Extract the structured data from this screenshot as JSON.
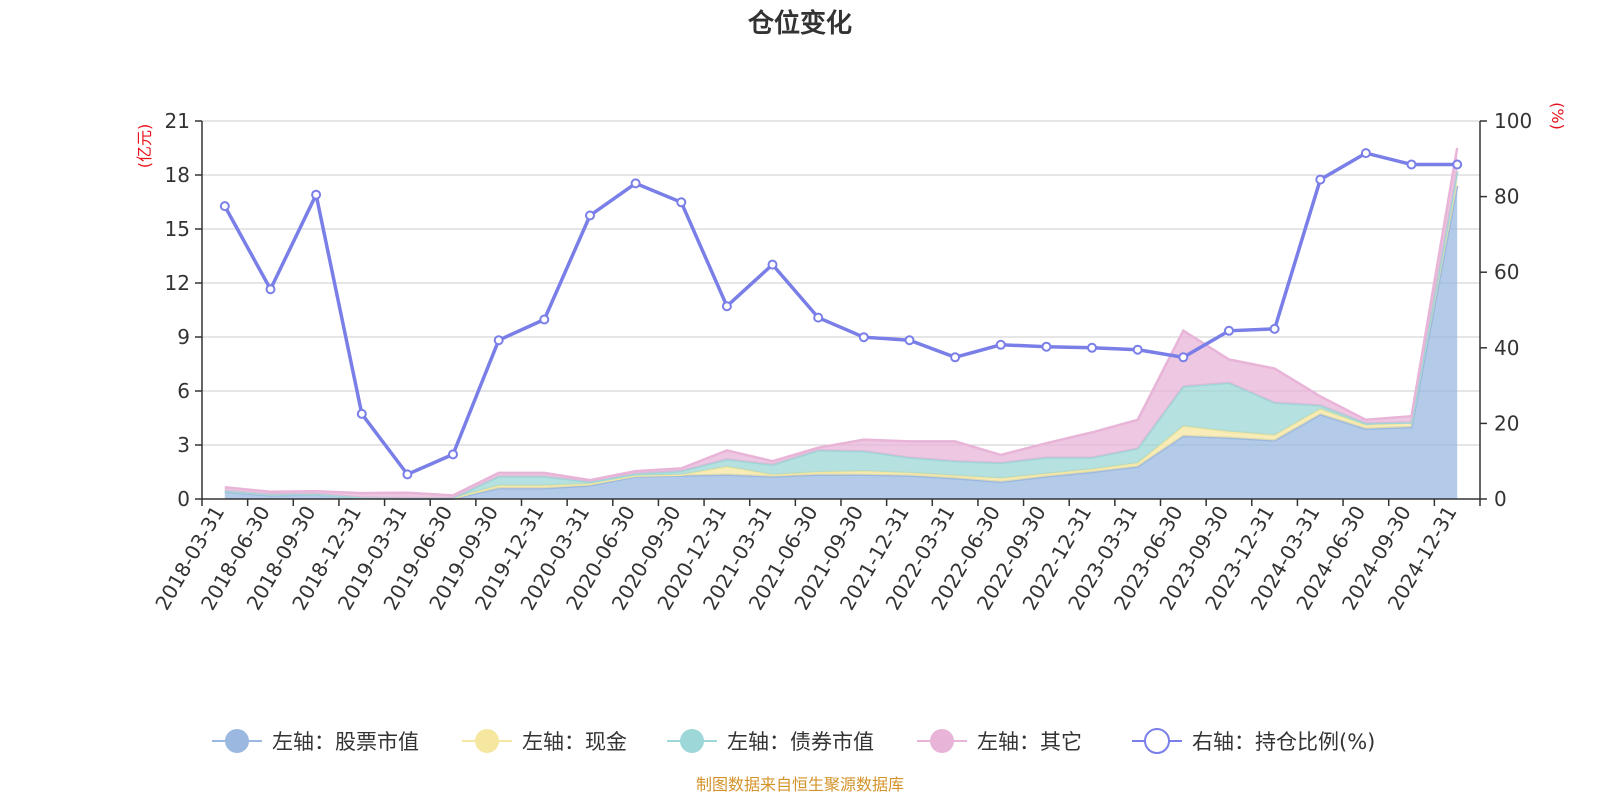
{
  "chart_data": {
    "type": "area",
    "title": "仓位变化",
    "left_axis_unit": "(亿元)",
    "right_axis_unit": "(%)",
    "left_ylim": [
      0,
      21
    ],
    "left_ticks": [
      "0",
      "3",
      "6",
      "9",
      "12",
      "15",
      "18",
      "21"
    ],
    "right_ylim": [
      0,
      100
    ],
    "right_ticks": [
      "0",
      "20",
      "40",
      "60",
      "80",
      "100"
    ],
    "categories": [
      "2018-03-31",
      "2018-06-30",
      "2018-09-30",
      "2018-12-31",
      "2019-03-31",
      "2019-06-30",
      "2019-09-30",
      "2019-12-31",
      "2020-03-31",
      "2020-06-30",
      "2020-09-30",
      "2020-12-31",
      "2021-03-31",
      "2021-06-30",
      "2021-09-30",
      "2021-12-31",
      "2022-03-31",
      "2022-06-30",
      "2022-09-30",
      "2022-12-31",
      "2023-03-31",
      "2023-06-30",
      "2023-09-30",
      "2023-12-31",
      "2024-03-31",
      "2024-06-30",
      "2024-09-30",
      "2024-12-31"
    ],
    "series": [
      {
        "name": "左轴：股票市值",
        "axis": "left",
        "type": "stacked-area",
        "color": "#9ab8e0",
        "values": [
          0.4,
          0.2,
          0.25,
          0.05,
          0.02,
          0.02,
          0.6,
          0.6,
          0.75,
          1.25,
          1.3,
          1.35,
          1.25,
          1.35,
          1.35,
          1.3,
          1.15,
          0.95,
          1.25,
          1.5,
          1.8,
          3.5,
          3.4,
          3.25,
          4.7,
          3.9,
          4.0,
          17.4
        ]
      },
      {
        "name": "左轴：现金",
        "axis": "left",
        "type": "stacked-area",
        "color": "#f5e6a0",
        "values": [
          0.05,
          0.05,
          0.03,
          0.03,
          0.03,
          0.03,
          0.15,
          0.15,
          0.1,
          0.05,
          0.05,
          0.45,
          0.1,
          0.15,
          0.2,
          0.15,
          0.15,
          0.2,
          0.15,
          0.15,
          0.2,
          0.55,
          0.35,
          0.3,
          0.3,
          0.2,
          0.25,
          0.8
        ]
      },
      {
        "name": "左轴：债券市值",
        "axis": "left",
        "type": "stacked-area",
        "color": "#9dd7d7",
        "values": [
          0.0,
          0.0,
          0.0,
          0.0,
          0.0,
          0.0,
          0.5,
          0.5,
          0.1,
          0.1,
          0.2,
          0.4,
          0.55,
          1.2,
          1.1,
          0.85,
          0.8,
          0.85,
          0.9,
          0.65,
          0.8,
          2.2,
          2.7,
          1.8,
          0.2,
          0.1,
          0.0,
          0.0
        ]
      },
      {
        "name": "左轴：其它",
        "axis": "left",
        "type": "stacked-area",
        "color": "#e8b4d8",
        "values": [
          0.2,
          0.15,
          0.15,
          0.25,
          0.3,
          0.15,
          0.2,
          0.2,
          0.1,
          0.15,
          0.15,
          0.5,
          0.2,
          0.15,
          0.65,
          0.9,
          1.1,
          0.45,
          0.8,
          1.4,
          1.6,
          3.1,
          1.3,
          1.9,
          0.5,
          0.2,
          0.35,
          1.3
        ]
      },
      {
        "name": "右轴：持仓比例(%)",
        "axis": "right",
        "type": "line",
        "color": "#7a7fe8",
        "values": [
          77.5,
          55.5,
          80.5,
          22.5,
          6.5,
          11.8,
          42,
          47.5,
          75,
          83.5,
          78.5,
          51,
          62,
          48,
          42.8,
          42,
          37.5,
          40.8,
          40.3,
          40,
          39.5,
          37.5,
          44.5,
          45,
          84.5,
          91.5,
          88.5,
          88.5
        ]
      }
    ],
    "legend": [
      "左轴：股票市值",
      "左轴：现金",
      "左轴：债券市值",
      "左轴：其它",
      "右轴：持仓比例(%)"
    ],
    "legend_position": "bottom",
    "grid": true
  },
  "source_text": "制图数据来自恒生聚源数据库",
  "colors": {
    "unit": "#e8101a",
    "axis": "#333333",
    "grid": "#cccccc",
    "source": "#d4932a"
  }
}
